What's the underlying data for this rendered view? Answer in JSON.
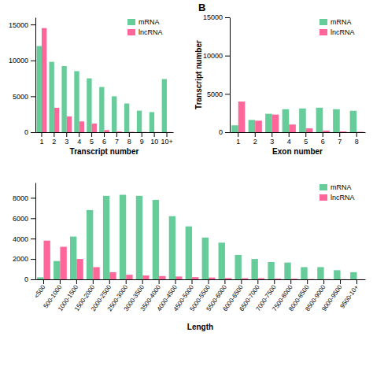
{
  "chart_data": [
    {
      "type": "bar",
      "xlabel": "Transcript number",
      "categories": [
        "1",
        "2",
        "3",
        "4",
        "5",
        "6",
        "7",
        "8",
        "9",
        "10",
        "10+"
      ],
      "series": [
        {
          "name": "mRNA",
          "color": "#66CC99",
          "values": [
            12000,
            9800,
            9200,
            8500,
            7500,
            6300,
            5000,
            4000,
            3000,
            2800,
            7400
          ]
        },
        {
          "name": "lncRNA",
          "color": "#FF6699",
          "values": [
            14500,
            3400,
            2200,
            1500,
            1200,
            300,
            100,
            50,
            30,
            20,
            20
          ]
        }
      ],
      "ylim": [
        0,
        16000
      ],
      "yticks": [
        0,
        5000,
        10000,
        15000
      ],
      "legend": "upper right",
      "grid": false
    },
    {
      "type": "bar",
      "annotations": [
        "B"
      ],
      "xlabel": "Exon number",
      "ylabel": "Transcript number",
      "categories": [
        "1",
        "2",
        "3",
        "4",
        "5",
        "6",
        "7",
        "8"
      ],
      "series": [
        {
          "name": "mRNA",
          "color": "#66CC99",
          "values": [
            900,
            1600,
            2400,
            3000,
            3100,
            3200,
            3000,
            2800
          ]
        },
        {
          "name": "lncRNA",
          "color": "#FF6699",
          "values": [
            4000,
            1500,
            2300,
            1000,
            500,
            200,
            100,
            50
          ]
        }
      ],
      "ylim": [
        0,
        15000
      ],
      "yticks": [
        0,
        5000,
        10000,
        15000
      ],
      "legend": "upper right",
      "grid": false
    },
    {
      "type": "bar",
      "xlabel": "Length",
      "categories": [
        "<500",
        "500-1000",
        "1000-1500",
        "1500-2000",
        "2000-2500",
        "2500-3000",
        "3000-3500",
        "3500-4000",
        "4000-4500",
        "4500-5000",
        "5000-5500",
        "5500-6000",
        "6000-6500",
        "6500-7000",
        "7000-7500",
        "7500-8000",
        "8000-8500",
        "8500-9000",
        "9000-9500",
        "9500-10+"
      ],
      "series": [
        {
          "name": "mRNA",
          "color": "#66CC99",
          "values": [
            200,
            1800,
            4200,
            6800,
            8200,
            8300,
            8200,
            7800,
            6200,
            5200,
            4100,
            3600,
            2400,
            2000,
            1700,
            1650,
            1200,
            1200,
            900,
            700
          ]
        },
        {
          "name": "lncRNA",
          "color": "#FF6699",
          "values": [
            3800,
            3200,
            2000,
            1200,
            700,
            450,
            380,
            320,
            280,
            220,
            180,
            130,
            110,
            110,
            80,
            60,
            30,
            20,
            15,
            10
          ]
        }
      ],
      "ylim": [
        0,
        9500
      ],
      "yticks": [
        0,
        2000,
        4000,
        6000,
        8000
      ],
      "legend": "upper right",
      "grid": false
    }
  ]
}
